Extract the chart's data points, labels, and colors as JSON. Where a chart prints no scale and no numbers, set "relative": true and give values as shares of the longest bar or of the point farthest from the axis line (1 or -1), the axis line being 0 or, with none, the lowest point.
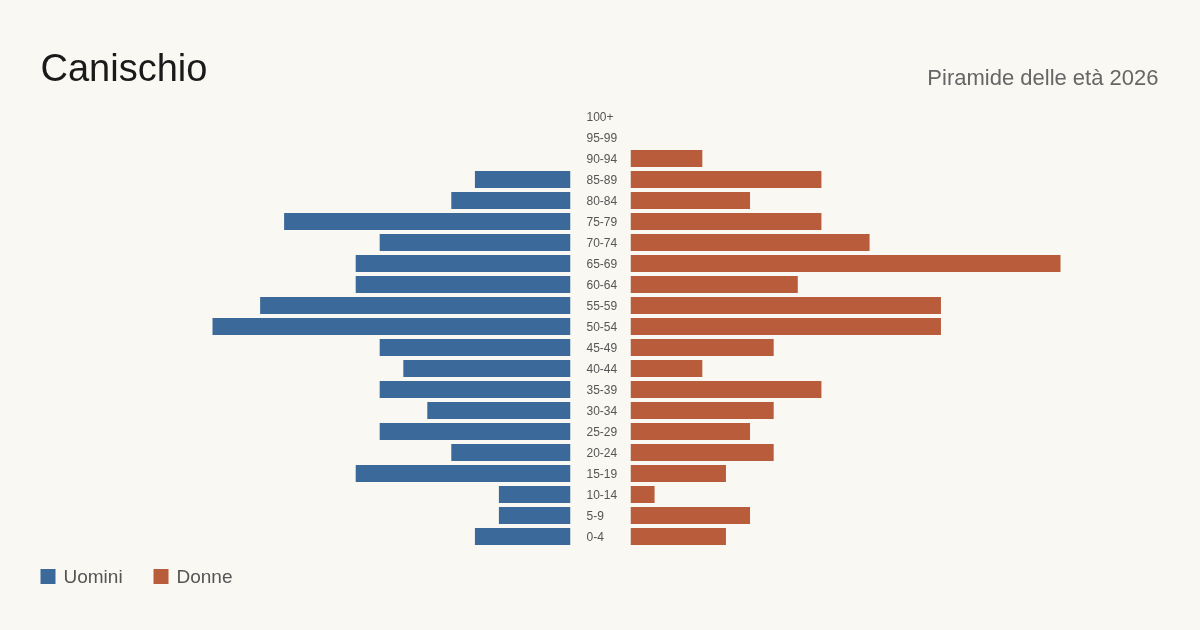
{
  "chart_data": [
    {
      "type": "bar",
      "orientation": "horizontal",
      "relative": true,
      "title": "Canischio",
      "tick_labels": "y",
      "categories": [
        "100+",
        "95-99",
        "90-94",
        "85-89",
        "80-84",
        "75-79",
        "70-74",
        "65-69",
        "60-64",
        "55-59",
        "50-54",
        "45-49",
        "40-44",
        "35-39",
        "30-34",
        "25-29",
        "20-24",
        "15-19",
        "10-14",
        "5-9",
        "0-4"
      ],
      "series": [
        {
          "name": "Uomini",
          "color": "#3b6a9a",
          "values": [
            0,
            0,
            0,
            -0.267,
            -0.333,
            -0.8,
            -0.533,
            -0.6,
            -0.6,
            -0.867,
            -1,
            -0.533,
            -0.467,
            -0.533,
            -0.4,
            -0.533,
            -0.333,
            -0.6,
            -0.2,
            -0.2,
            -0.267
          ]
        }
      ],
      "legend": "bottom left"
    },
    {
      "type": "bar",
      "orientation": "horizontal",
      "relative": true,
      "subtitle": "Piramide delle età 2026",
      "categories": [
        null,
        null,
        null,
        null,
        null,
        null,
        null,
        null,
        null,
        null,
        null,
        null,
        null,
        null,
        null,
        null,
        null,
        null,
        null,
        null,
        null
      ],
      "series": [
        {
          "name": "Donne",
          "color": "#b85c3c",
          "values": [
            0,
            0,
            0.167,
            0.444,
            0.278,
            0.444,
            0.556,
            1,
            0.389,
            0.722,
            0.722,
            0.333,
            0.167,
            0.444,
            0.333,
            0.278,
            0.333,
            0.222,
            0.056,
            0.278,
            0.222
          ]
        }
      ],
      "legend": "bottom left"
    }
  ]
}
